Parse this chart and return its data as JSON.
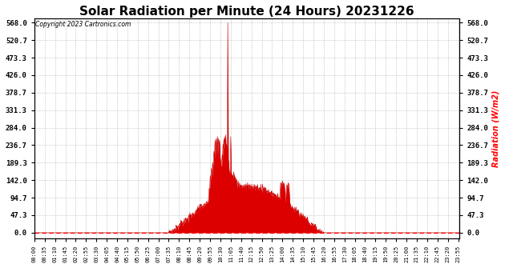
{
  "title": "Solar Radiation per Minute (24 Hours) 20231226",
  "copyright_text": "Copyright 2023 Cartronics.com",
  "ylabel": "Radiation (W/m2)",
  "ylabel_color": "#ff0000",
  "title_fontsize": 11,
  "background_color": "#ffffff",
  "plot_color": "#cc0000",
  "fill_color": "#dd0000",
  "yticks": [
    0.0,
    47.3,
    94.7,
    142.0,
    189.3,
    236.7,
    284.0,
    331.3,
    378.7,
    426.0,
    473.3,
    520.7,
    568.0
  ],
  "ymax": 568.0,
  "total_minutes": 1440,
  "sunrise_hour": 7.583,
  "sunset_hour": 16.333,
  "peak_minute": 655,
  "peak_value": 568.0,
  "grid_color": "#999999",
  "bottom_line_color": "#ff0000",
  "tick_interval": 35
}
